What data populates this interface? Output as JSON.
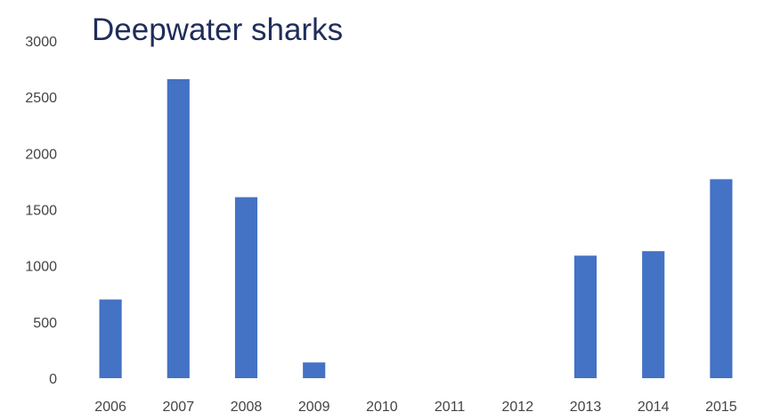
{
  "chart_data": {
    "type": "bar",
    "title": "Deepwater sharks",
    "xlabel": "",
    "ylabel": "",
    "categories": [
      "2006",
      "2007",
      "2008",
      "2009",
      "2010",
      "2011",
      "2012",
      "2013",
      "2014",
      "2015"
    ],
    "values": [
      700,
      2660,
      1610,
      140,
      0,
      0,
      0,
      1090,
      1130,
      1770
    ],
    "ylim": [
      0,
      3000
    ],
    "yticks": [
      0,
      500,
      1000,
      1500,
      2000,
      2500,
      3000
    ],
    "grid": false,
    "legend": "none",
    "bar_color": "#4472c4"
  }
}
